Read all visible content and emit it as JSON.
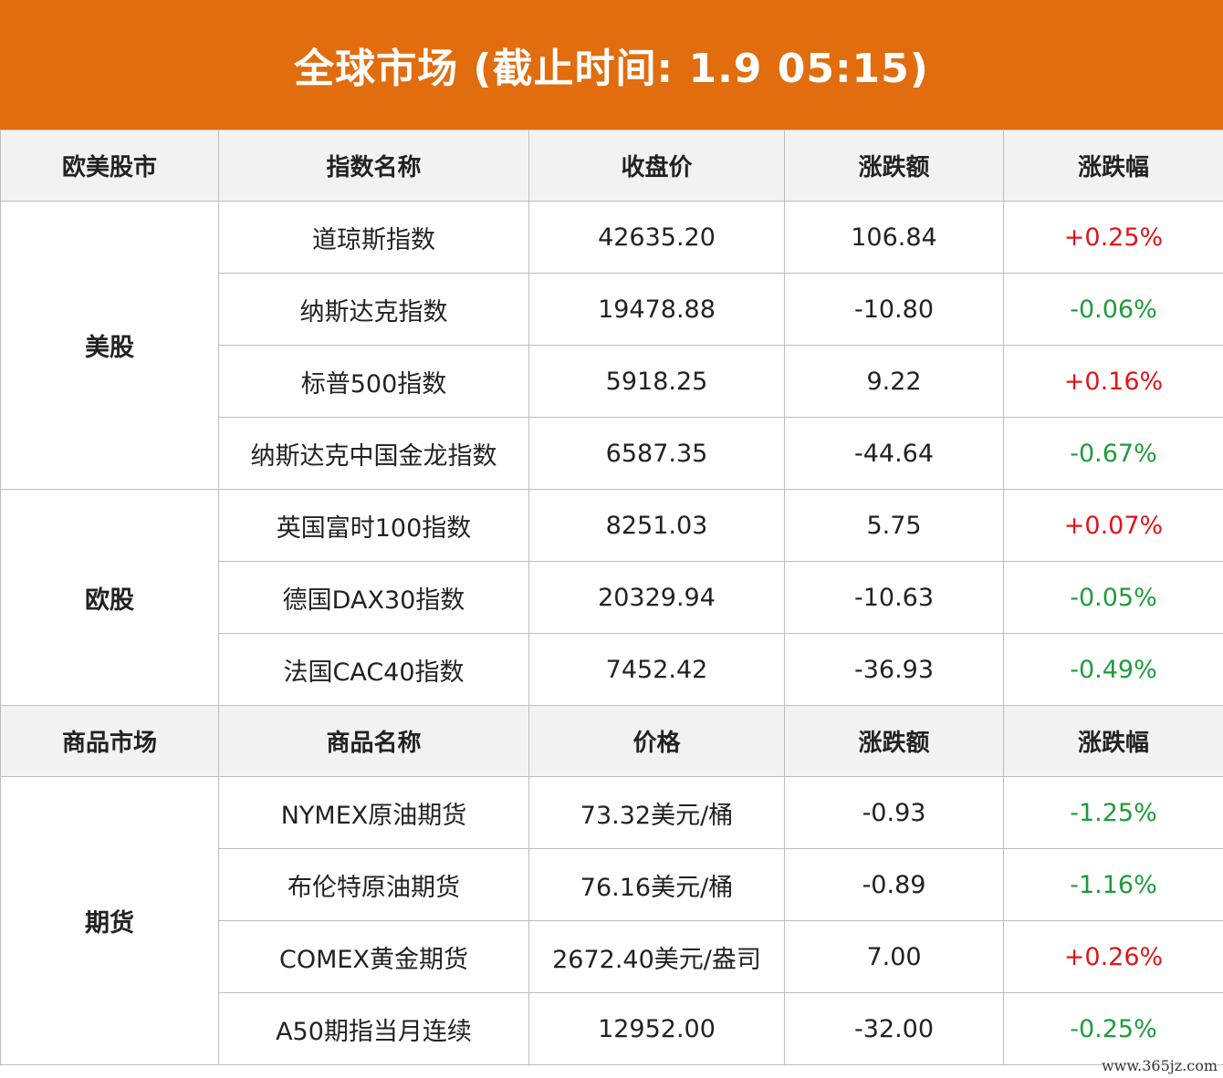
{
  "title": "全球市场 (截止时间: 1.9 05:15)",
  "colors": {
    "banner": "#e16d0e",
    "up": "#e0161b",
    "down": "#1f9b3c"
  },
  "watermark": "www.365jz.com",
  "equities": {
    "headers": [
      "欧美股市",
      "指数名称",
      "收盘价",
      "涨跌额",
      "涨跌幅"
    ],
    "groups": [
      {
        "label": "美股",
        "rows": [
          {
            "name": "道琼斯指数",
            "price": "42635.20",
            "change": "106.84",
            "pct": "+0.25%"
          },
          {
            "name": "纳斯达克指数",
            "price": "19478.88",
            "change": "-10.80",
            "pct": "-0.06%"
          },
          {
            "name": "标普500指数",
            "price": "5918.25",
            "change": "9.22",
            "pct": "+0.16%"
          },
          {
            "name": "纳斯达克中国金龙指数",
            "price": "6587.35",
            "change": "-44.64",
            "pct": "-0.67%"
          }
        ]
      },
      {
        "label": "欧股",
        "rows": [
          {
            "name": "英国富时100指数",
            "price": "8251.03",
            "change": "5.75",
            "pct": "+0.07%"
          },
          {
            "name": "德国DAX30指数",
            "price": "20329.94",
            "change": "-10.63",
            "pct": "-0.05%"
          },
          {
            "name": "法国CAC40指数",
            "price": "7452.42",
            "change": "-36.93",
            "pct": "-0.49%"
          }
        ]
      }
    ]
  },
  "commodities": {
    "headers": [
      "商品市场",
      "商品名称",
      "价格",
      "涨跌额",
      "涨跌幅"
    ],
    "groups": [
      {
        "label": "期货",
        "rows": [
          {
            "name": "NYMEX原油期货",
            "price": "73.32美元/桶",
            "change": "-0.93",
            "pct": "-1.25%"
          },
          {
            "name": "布伦特原油期货",
            "price": "76.16美元/桶",
            "change": "-0.89",
            "pct": "-1.16%"
          },
          {
            "name": "COMEX黄金期货",
            "price": "2672.40美元/盎司",
            "change": "7.00",
            "pct": "+0.26%"
          },
          {
            "name": "A50期指当月连续",
            "price": "12952.00",
            "change": "-32.00",
            "pct": "-0.25%"
          }
        ]
      }
    ]
  }
}
